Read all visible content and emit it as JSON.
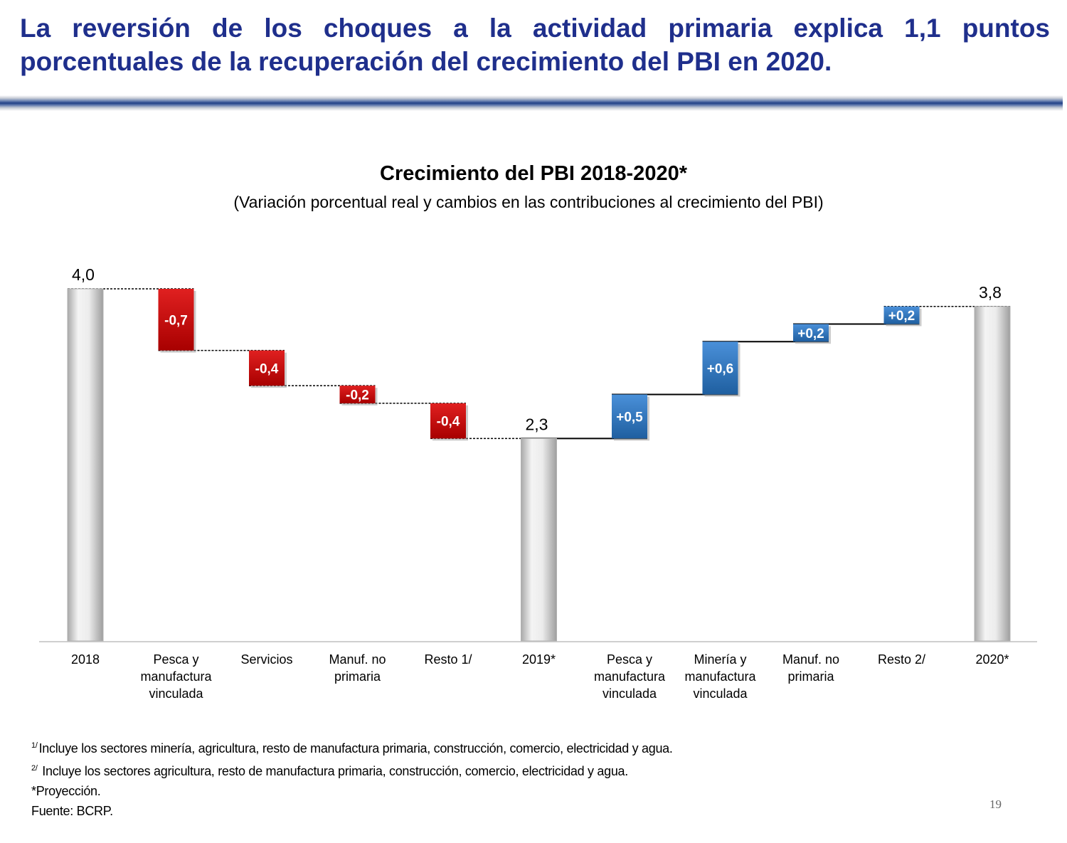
{
  "headline": "La reversión de los choques a la actividad primaria explica 1,1 puntos porcentuales de la recuperación del crecimiento del PBI en 2020.",
  "chart_data": {
    "type": "waterfall",
    "title": "Crecimiento del PBI 2018-2020*",
    "subtitle": "(Variación porcentual real y cambios en las contribuciones al crecimiento del PBI)",
    "ylim": [
      0,
      4.0
    ],
    "grid": false,
    "categories": [
      "2018",
      "Pesca y manufactura vinculada",
      "Servicios",
      "Manuf. no primaria",
      "Resto 1/",
      "2019*",
      "Pesca y manufactura vinculada",
      "Minería y manufactura vinculada",
      "Manuf. no primaria",
      "Resto 2/",
      "2020*"
    ],
    "bars": [
      {
        "kind": "total",
        "value": 4.0,
        "label": "4,0"
      },
      {
        "kind": "change",
        "value": -0.7,
        "label": "-0,7"
      },
      {
        "kind": "change",
        "value": -0.4,
        "label": "-0,4"
      },
      {
        "kind": "change",
        "value": -0.2,
        "label": "-0,2"
      },
      {
        "kind": "change",
        "value": -0.4,
        "label": "-0,4"
      },
      {
        "kind": "total",
        "value": 2.3,
        "label": "2,3"
      },
      {
        "kind": "change",
        "value": 0.5,
        "label": "+0,5"
      },
      {
        "kind": "change",
        "value": 0.6,
        "label": "+0,6"
      },
      {
        "kind": "change",
        "value": 0.2,
        "label": "+0,2"
      },
      {
        "kind": "change",
        "value": 0.2,
        "label": "+0,2"
      },
      {
        "kind": "total",
        "value": 3.8,
        "label": "3,8"
      }
    ],
    "colors": {
      "negative": "#c00000",
      "positive": "#2e75b6",
      "total": "#e6e6e6"
    }
  },
  "footnotes": {
    "note1_mark": "1/",
    "note1": "Incluye los sectores minería, agricultura, resto de manufactura primaria, construcción, comercio, electricidad y agua.",
    "note2_mark": "2/",
    "note2": "Incluye los sectores agricultura, resto de manufactura primaria, construcción, comercio, electricidad y agua.",
    "note3": "*Proyección.",
    "source": "Fuente: BCRP."
  },
  "page_number": "19"
}
